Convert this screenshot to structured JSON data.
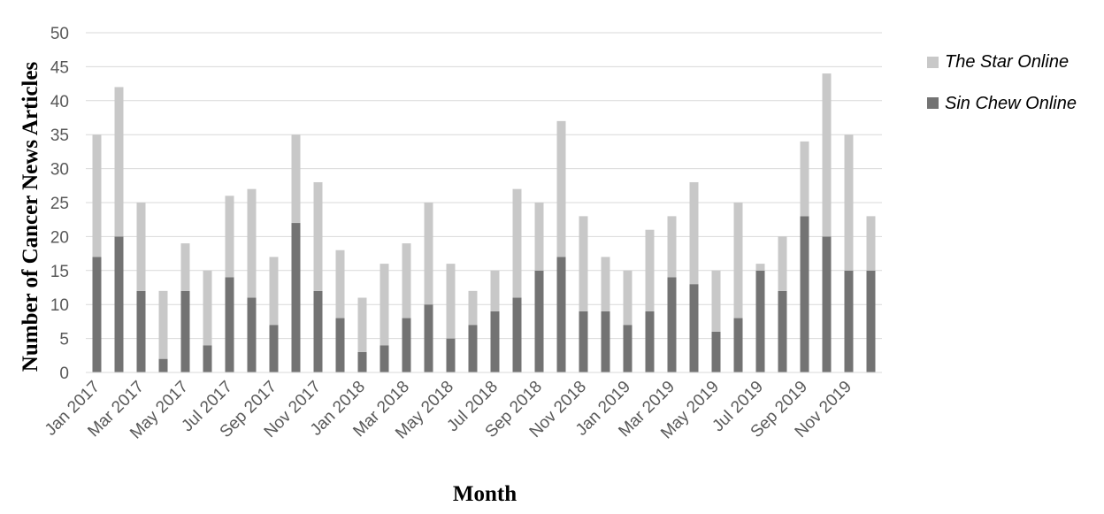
{
  "chart_data": {
    "type": "bar",
    "stacked": true,
    "title": "",
    "xlabel": "Month",
    "ylabel": "Number of Cancer News Articles",
    "ylim": [
      0,
      50
    ],
    "yticks": [
      0,
      5,
      10,
      15,
      20,
      25,
      30,
      35,
      40,
      45,
      50
    ],
    "grid": true,
    "legend_position": "right",
    "categories": [
      "Jan 2017",
      "Feb 2017",
      "Mar 2017",
      "Apr 2017",
      "May 2017",
      "Jun 2017",
      "Jul 2017",
      "Aug 2017",
      "Sep 2017",
      "Oct 2017",
      "Nov 2017",
      "Dec 2017",
      "Jan 2018",
      "Feb 2018",
      "Mar 2018",
      "Apr 2018",
      "May 2018",
      "Jun 2018",
      "Jul 2018",
      "Aug 2018",
      "Sep 2018",
      "Oct 2018",
      "Nov 2018",
      "Dec 2018",
      "Jan 2019",
      "Feb 2019",
      "Mar 2019",
      "Apr 2019",
      "May 2019",
      "Jun 2019",
      "Jul 2019",
      "Aug 2019",
      "Sep 2019",
      "Oct 2019",
      "Nov 2019",
      "Dec 2019"
    ],
    "visible_tick_labels": [
      "Jan 2017",
      "Mar 2017",
      "May 2017",
      "Jul 2017",
      "Sep 2017",
      "Nov 2017",
      "Jan 2018",
      "Mar 2018",
      "May 2018",
      "Jul 2018",
      "Sep 2018",
      "Nov 2018",
      "Jan 2019",
      "Mar 2019",
      "May 2019",
      "Jul 2019",
      "Sep 2019",
      "Nov 2019"
    ],
    "series": [
      {
        "name": "Sin Chew Online",
        "color": "#737373",
        "values": [
          17,
          20,
          12,
          2,
          12,
          4,
          14,
          11,
          7,
          22,
          12,
          8,
          3,
          4,
          8,
          10,
          5,
          7,
          9,
          11,
          15,
          17,
          9,
          9,
          7,
          9,
          14,
          13,
          6,
          8,
          15,
          12,
          23,
          20,
          15,
          15
        ]
      },
      {
        "name": "The Star Online",
        "color": "#c8c8c8",
        "values": [
          18,
          22,
          13,
          10,
          7,
          11,
          12,
          16,
          10,
          13,
          16,
          10,
          8,
          12,
          11,
          15,
          11,
          5,
          6,
          16,
          10,
          20,
          14,
          8,
          8,
          12,
          9,
          15,
          9,
          17,
          1,
          8,
          11,
          24,
          20,
          8
        ]
      }
    ],
    "legend": [
      {
        "label": "The Star Online",
        "color": "#c8c8c8"
      },
      {
        "label": "Sin Chew Online",
        "color": "#737373"
      }
    ]
  }
}
